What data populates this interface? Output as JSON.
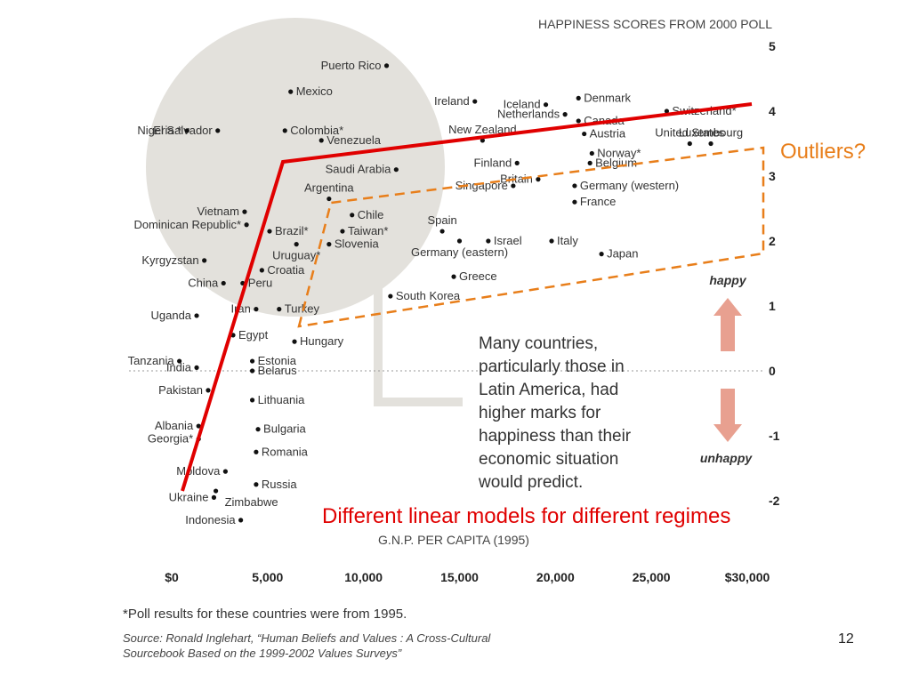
{
  "chart_data": {
    "type": "scatter",
    "title": "HAPPINESS SCORES FROM 2000 POLL",
    "xlabel": "G.N.P. PER CAPITA (1995)",
    "ylabel": "",
    "xlim": [
      0,
      30000
    ],
    "ylim": [
      -2,
      5
    ],
    "x_ticks": [
      "$0",
      "5,000",
      "10,000",
      "15,000",
      "20,000",
      "25,000",
      "$30,000"
    ],
    "y_ticks": [
      "5",
      "4",
      "3",
      "2",
      "1",
      "0",
      "-1",
      "-2"
    ],
    "points": [
      {
        "label": "Puerto Rico",
        "x": 11200,
        "y": 4.7
      },
      {
        "label": "Mexico",
        "x": 6200,
        "y": 4.3
      },
      {
        "label": "El Salvador",
        "x": 2400,
        "y": 3.7
      },
      {
        "label": "Nigeria *",
        "x": 800,
        "y": 3.7
      },
      {
        "label": "Colombia*",
        "x": 5900,
        "y": 3.7
      },
      {
        "label": "Venezuela",
        "x": 7800,
        "y": 3.55
      },
      {
        "label": "Saudi Arabia",
        "x": 11700,
        "y": 3.1
      },
      {
        "label": "Argentina",
        "x": 8200,
        "y": 2.65
      },
      {
        "label": "Vietnam",
        "x": 3800,
        "y": 2.45
      },
      {
        "label": "Chile",
        "x": 9400,
        "y": 2.4
      },
      {
        "label": "Dominican Republic*",
        "x": 3900,
        "y": 2.25
      },
      {
        "label": "Brazil*",
        "x": 5100,
        "y": 2.15
      },
      {
        "label": "Taiwan*",
        "x": 8900,
        "y": 2.15
      },
      {
        "label": "Uruguay*",
        "x": 6500,
        "y": 1.95
      },
      {
        "label": "Slovenia",
        "x": 8200,
        "y": 1.95
      },
      {
        "label": "Kyrgyzstan",
        "x": 1700,
        "y": 1.7
      },
      {
        "label": "Croatia",
        "x": 4700,
        "y": 1.55
      },
      {
        "label": "China",
        "x": 2700,
        "y": 1.35
      },
      {
        "label": "Peru",
        "x": 3700,
        "y": 1.35
      },
      {
        "label": "South Korea",
        "x": 11400,
        "y": 1.15
      },
      {
        "label": "Iran",
        "x": 4400,
        "y": 0.95
      },
      {
        "label": "Turkey",
        "x": 5600,
        "y": 0.95
      },
      {
        "label": "Uganda",
        "x": 1300,
        "y": 0.85
      },
      {
        "label": "Egypt",
        "x": 3200,
        "y": 0.55
      },
      {
        "label": "Hungary",
        "x": 6400,
        "y": 0.45
      },
      {
        "label": "Tanzania",
        "x": 400,
        "y": 0.15
      },
      {
        "label": "Estonia",
        "x": 4200,
        "y": 0.15
      },
      {
        "label": "India",
        "x": 1300,
        "y": 0.05
      },
      {
        "label": "Belarus",
        "x": 4200,
        "y": 0.0
      },
      {
        "label": "Pakistan",
        "x": 1900,
        "y": -0.3
      },
      {
        "label": "Lithuania",
        "x": 4200,
        "y": -0.45
      },
      {
        "label": "Albania",
        "x": 1400,
        "y": -0.85
      },
      {
        "label": "Bulgaria",
        "x": 4500,
        "y": -0.9
      },
      {
        "label": "Georgia*",
        "x": 1400,
        "y": -1.05
      },
      {
        "label": "Romania",
        "x": 4400,
        "y": -1.25
      },
      {
        "label": "Moldova",
        "x": 2800,
        "y": -1.55
      },
      {
        "label": "Russia",
        "x": 4400,
        "y": -1.75
      },
      {
        "label": "Ukraine",
        "x": 2200,
        "y": -1.95
      },
      {
        "label": "Zimbabwe",
        "x": 2300,
        "y": -1.85
      },
      {
        "label": "Indonesia",
        "x": 3600,
        "y": -2.3
      },
      {
        "label": "Ireland",
        "x": 15800,
        "y": 4.15
      },
      {
        "label": "Iceland",
        "x": 19500,
        "y": 4.1
      },
      {
        "label": "Denmark",
        "x": 21200,
        "y": 4.2
      },
      {
        "label": "Switzerland*",
        "x": 25800,
        "y": 4.0
      },
      {
        "label": "Netherlands",
        "x": 20500,
        "y": 3.95
      },
      {
        "label": "Canada",
        "x": 21200,
        "y": 3.85
      },
      {
        "label": "New Zealand",
        "x": 16200,
        "y": 3.55
      },
      {
        "label": "Austria",
        "x": 21500,
        "y": 3.65
      },
      {
        "label": "Luxembourg",
        "x": 28100,
        "y": 3.5
      },
      {
        "label": "Norway*",
        "x": 21900,
        "y": 3.35
      },
      {
        "label": "Belgium",
        "x": 21800,
        "y": 3.2
      },
      {
        "label": "Finland",
        "x": 18000,
        "y": 3.2
      },
      {
        "label": "Britain",
        "x": 19100,
        "y": 2.95
      },
      {
        "label": "United States",
        "x": 27000,
        "y": 3.5
      },
      {
        "label": "Singapore",
        "x": 17800,
        "y": 2.85
      },
      {
        "label": "Germany (western)",
        "x": 21000,
        "y": 2.85
      },
      {
        "label": "France",
        "x": 21000,
        "y": 2.6
      },
      {
        "label": "Spain",
        "x": 14100,
        "y": 2.15
      },
      {
        "label": "Germany (eastern)",
        "x": 15000,
        "y": 2.0
      },
      {
        "label": "Israel",
        "x": 16500,
        "y": 2.0
      },
      {
        "label": "Italy",
        "x": 19800,
        "y": 2.0
      },
      {
        "label": "Japan",
        "x": 22400,
        "y": 1.8
      },
      {
        "label": "Greece",
        "x": 14700,
        "y": 1.45
      }
    ]
  },
  "overlay": {
    "outliers_label": "Outliers?",
    "regimes_caption": "Different linear models for different regimes",
    "annotation_lines": [
      "Many countries,",
      "particularly those in",
      "Latin America, had",
      "higher marks for",
      "happiness than their",
      "economic situation",
      "would predict."
    ],
    "happy_label": "happy",
    "unhappy_label": "unhappy"
  },
  "footer": {
    "footnote": "*Poll results for these countries were from 1995.",
    "source_line1": "Source: Ronald Inglehart, “Human Beliefs and Values : A Cross-Cultural",
    "source_line2": "Sourcebook Based on the 1999-2002 Values Surveys”",
    "page_number": "12"
  },
  "colors": {
    "fit_line": "#e00000",
    "outlier_box": "#e87e1a",
    "highlight_circle": "#e3e1dc",
    "arrow": "#e8a090"
  }
}
